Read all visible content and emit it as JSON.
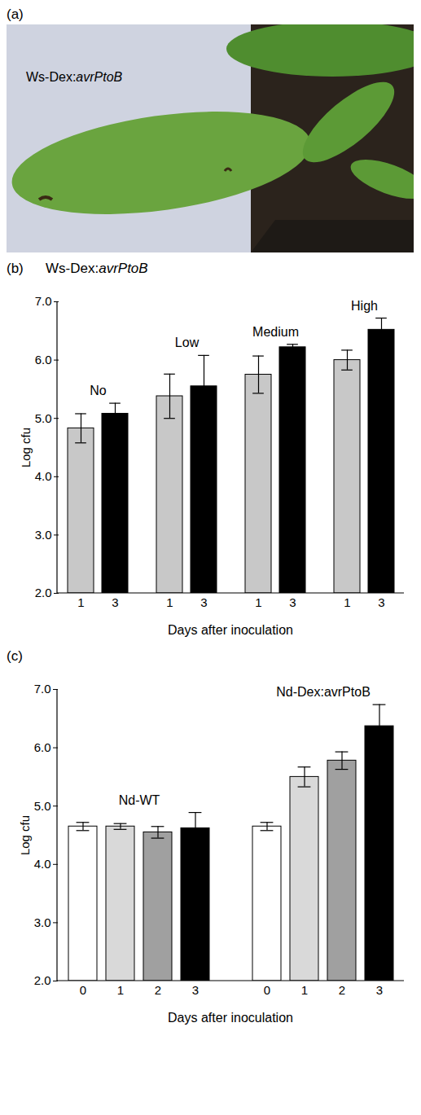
{
  "panel_a": {
    "letter": "(a)",
    "text": "Ws-Dex:avrPtoB"
  },
  "chart_data": [
    {
      "letter": "(b)",
      "type": "bar",
      "title": "Ws-Dex:avrPtoB",
      "categories": [
        "No",
        "Low",
        "Medium",
        "High"
      ],
      "series": [
        {
          "name": "1",
          "color": "#c8c8c8",
          "values": [
            4.83,
            5.38,
            5.75,
            6.0
          ],
          "errors": [
            0.25,
            0.38,
            0.32,
            0.17
          ]
        },
        {
          "name": "3",
          "color": "#000000",
          "values": [
            5.08,
            5.55,
            6.22,
            6.52
          ],
          "errors": [
            0.18,
            0.53,
            0.05,
            0.2
          ]
        }
      ],
      "xlabel": "Days after inoculation",
      "ylabel": "Log cfu",
      "ylim": [
        2,
        7
      ],
      "yticks": [
        2,
        3,
        4,
        5,
        6,
        7
      ]
    },
    {
      "letter": "(c)",
      "type": "bar",
      "categories": [
        "Nd-WT",
        "Nd-Dex:avrPtoB"
      ],
      "series": [
        {
          "name": "0",
          "color": "#ffffff",
          "values": [
            4.65,
            4.65
          ],
          "errors": [
            0.07,
            0.07
          ]
        },
        {
          "name": "1",
          "color": "#d9d9d9",
          "values": [
            4.65,
            5.5
          ],
          "errors": [
            0.05,
            0.17
          ]
        },
        {
          "name": "2",
          "color": "#a0a0a0",
          "values": [
            4.55,
            5.78
          ],
          "errors": [
            0.1,
            0.15
          ]
        },
        {
          "name": "3",
          "color": "#000000",
          "values": [
            4.62,
            6.37
          ],
          "errors": [
            0.27,
            0.37
          ]
        }
      ],
      "xlabel": "Days after inoculation",
      "ylabel": "Log cfu",
      "ylim": [
        2,
        7
      ],
      "yticks": [
        2,
        3,
        4,
        5,
        6,
        7
      ]
    }
  ]
}
